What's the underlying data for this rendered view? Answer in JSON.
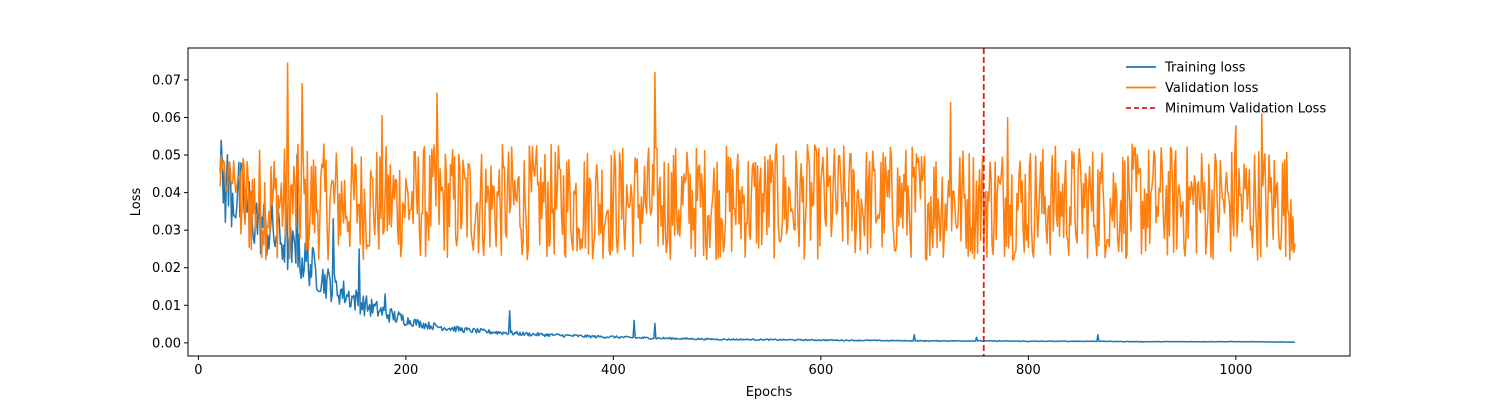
{
  "chart_data": {
    "type": "line",
    "title": "",
    "xlabel": "Epochs",
    "ylabel": "Loss",
    "xlim": [
      -10,
      1110
    ],
    "ylim": [
      -0.0035,
      0.0785
    ],
    "x_ticks": [
      0,
      200,
      400,
      600,
      800,
      1000
    ],
    "x_tick_labels": [
      "0",
      "200",
      "400",
      "600",
      "800",
      "1000"
    ],
    "y_ticks": [
      0.0,
      0.01,
      0.02,
      0.03,
      0.04,
      0.05,
      0.06,
      0.07
    ],
    "y_tick_labels": [
      "0.00",
      "0.01",
      "0.02",
      "0.03",
      "0.04",
      "0.05",
      "0.06",
      "0.07"
    ],
    "grid": false,
    "legend_position": "top-right",
    "x_range": [
      21,
      1057
    ],
    "series": [
      {
        "name": "Training loss",
        "color": "#1f77b4",
        "x": [
          21,
          30,
          40,
          50,
          60,
          70,
          80,
          90,
          100,
          110,
          120,
          130,
          140,
          150,
          160,
          170,
          180,
          190,
          200,
          220,
          240,
          260,
          280,
          300,
          320,
          340,
          360,
          380,
          400,
          420,
          440,
          460,
          480,
          500,
          550,
          600,
          650,
          700,
          750,
          800,
          850,
          867,
          900,
          950,
          1000,
          1057
        ],
        "values": [
          0.0405,
          0.039,
          0.036,
          0.033,
          0.03,
          0.028,
          0.026,
          0.023,
          0.021,
          0.019,
          0.016,
          0.014,
          0.0125,
          0.011,
          0.0095,
          0.0085,
          0.0075,
          0.0065,
          0.0058,
          0.0045,
          0.0038,
          0.0032,
          0.0028,
          0.0025,
          0.0022,
          0.002,
          0.0018,
          0.0016,
          0.0015,
          0.0013,
          0.0012,
          0.0011,
          0.001,
          0.0009,
          0.0008,
          0.0007,
          0.0006,
          0.0005,
          0.0005,
          0.0004,
          0.0004,
          0.0004,
          0.0003,
          0.0003,
          0.0003,
          0.0002
        ],
        "spikes": [
          {
            "x": 85,
            "y": 0.045
          },
          {
            "x": 95,
            "y": 0.05
          },
          {
            "x": 105,
            "y": 0.032
          },
          {
            "x": 130,
            "y": 0.033
          },
          {
            "x": 155,
            "y": 0.025
          },
          {
            "x": 180,
            "y": 0.013
          },
          {
            "x": 300,
            "y": 0.0085
          },
          {
            "x": 420,
            "y": 0.006
          },
          {
            "x": 440,
            "y": 0.0052
          },
          {
            "x": 690,
            "y": 0.0022
          },
          {
            "x": 750,
            "y": 0.0015
          },
          {
            "x": 867,
            "y": 0.0022
          }
        ]
      },
      {
        "name": "Validation loss",
        "color": "#ff7f0e",
        "x_start": 21,
        "x_end": 1057,
        "mean": 0.034,
        "low": 0.022,
        "high": 0.053,
        "peaks": [
          {
            "x": 86,
            "y": 0.0745
          },
          {
            "x": 100,
            "y": 0.069
          },
          {
            "x": 230,
            "y": 0.0665
          },
          {
            "x": 440,
            "y": 0.072
          },
          {
            "x": 725,
            "y": 0.064
          },
          {
            "x": 1025,
            "y": 0.061
          },
          {
            "x": 1000,
            "y": 0.0578
          },
          {
            "x": 177,
            "y": 0.0605
          },
          {
            "x": 780,
            "y": 0.06
          }
        ]
      }
    ],
    "annotations": [
      {
        "type": "vline",
        "name": "Minimum Validation Loss",
        "x": 757,
        "color": "#e31a1c",
        "style": "dashed"
      }
    ]
  }
}
